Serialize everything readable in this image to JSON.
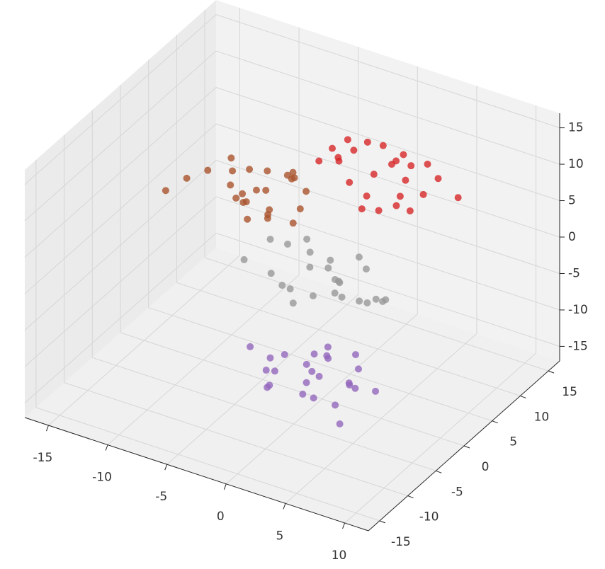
{
  "chart_data": {
    "type": "scatter3d",
    "xlim": [
      -17,
      12
    ],
    "ylim": [
      -17,
      17
    ],
    "zlim": [
      -17,
      17
    ],
    "xticks": [
      -15,
      -10,
      -5,
      0,
      5,
      10
    ],
    "yticks": [
      -15,
      -10,
      -5,
      0,
      5,
      10,
      15
    ],
    "zticks": [
      -15,
      -10,
      -5,
      0,
      5,
      10,
      15
    ],
    "grid": true,
    "series": [
      {
        "color": "#d62728",
        "x": [
          0.5,
          -2.1,
          3.2,
          1.8,
          -1.0,
          4.5,
          -3.3,
          2.0,
          0.2,
          -0.7,
          5.1,
          1.1,
          -2.8,
          3.6,
          -1.5,
          2.7,
          0.9,
          -3.9,
          1.6,
          4.0,
          -0.3,
          2.4,
          -1.9,
          6.8,
          0.0
        ],
        "y": [
          8.2,
          10.1,
          6.5,
          9.4,
          7.0,
          11.2,
          8.8,
          5.9,
          12.0,
          9.6,
          7.3,
          4.8,
          10.5,
          8.1,
          6.2,
          13.1,
          9.0,
          7.7,
          11.5,
          5.5,
          8.6,
          10.8,
          6.9,
          9.9,
          14.5
        ],
        "z": [
          8.5,
          9.1,
          6.8,
          10.2,
          7.4,
          8.0,
          9.6,
          5.9,
          7.1,
          11.3,
          8.8,
          6.4,
          9.9,
          5.2,
          10.6,
          7.7,
          12.1,
          8.3,
          6.0,
          9.2,
          4.8,
          8.9,
          10.4,
          7.5,
          6.6
        ]
      },
      {
        "color": "#a9542d",
        "x": [
          -6.2,
          -8.1,
          -4.5,
          -7.3,
          -5.0,
          -9.4,
          -3.8,
          -6.9,
          -5.6,
          -10.2,
          -4.1,
          -7.8,
          -6.4,
          -3.2,
          -8.6,
          -5.3,
          -7.0,
          -11.5,
          -4.8,
          -6.0,
          -9.0,
          -5.9,
          -2.9,
          -7.5,
          -12.8
        ],
        "y": [
          3.1,
          1.8,
          4.6,
          2.5,
          0.9,
          3.9,
          5.2,
          0.4,
          2.2,
          1.2,
          3.5,
          4.8,
          -0.5,
          2.9,
          2.0,
          5.8,
          1.5,
          0.2,
          4.0,
          3.3,
          2.7,
          -1.0,
          1.0,
          6.1,
          -0.8
        ],
        "z": [
          6.2,
          5.0,
          7.8,
          8.9,
          4.5,
          6.6,
          5.9,
          7.2,
          3.8,
          8.1,
          9.5,
          4.2,
          6.9,
          5.4,
          10.1,
          6.4,
          2.9,
          7.0,
          8.4,
          3.5,
          5.7,
          7.6,
          4.9,
          6.1,
          5.3
        ]
      },
      {
        "color": "#999999",
        "x": [
          0.3,
          -2.5,
          2.1,
          -1.2,
          3.4,
          -3.6,
          1.0,
          -0.5,
          4.2,
          -4.4,
          1.8,
          -1.9,
          2.9,
          0.6,
          -3.0,
          3.8,
          -0.9,
          1.4,
          -2.2,
          5.0,
          0.0,
          -1.6,
          2.4,
          -4.9,
          3.1
        ],
        "y": [
          0.5,
          -1.8,
          2.2,
          -3.1,
          0.9,
          1.5,
          -0.6,
          3.4,
          -2.2,
          0.1,
          4.1,
          -1.1,
          -3.8,
          1.9,
          -2.7,
          2.8,
          -0.2,
          -4.5,
          2.5,
          -0.9,
          3.0,
          0.7,
          -1.5,
          -3.5,
          4.8
        ],
        "z": [
          0.8,
          -1.5,
          2.1,
          -0.4,
          -2.6,
          1.3,
          3.0,
          -3.2,
          0.2,
          2.5,
          -1.0,
          -4.1,
          1.7,
          -2.0,
          0.5,
          -3.5,
          2.8,
          1.0,
          -1.8,
          0.0,
          -2.9,
          3.6,
          -0.7,
          1.9,
          -5.0
        ]
      },
      {
        "color": "#9467bd",
        "x": [
          1.2,
          -1.5,
          3.0,
          0.4,
          -2.8,
          4.1,
          -0.6,
          2.2,
          1.7,
          -3.5,
          5.0,
          0.0,
          -1.1,
          2.9,
          3.8,
          -2.0,
          1.0,
          -4.2,
          4.6,
          0.8,
          -0.2,
          2.5,
          -3.0,
          1.5,
          6.0
        ],
        "y": [
          -3.0,
          -5.2,
          -1.4,
          -2.2,
          -4.0,
          -3.8,
          -0.5,
          -6.1,
          -2.7,
          -1.8,
          -4.6,
          -3.4,
          -7.0,
          0.4,
          -2.0,
          -5.5,
          -1.0,
          -3.9,
          -6.5,
          -4.4,
          1.5,
          -2.9,
          -0.3,
          -5.9,
          -3.1
        ],
        "z": [
          -11.2,
          -10.4,
          -12.5,
          -9.1,
          -11.8,
          -10.0,
          -13.2,
          -11.5,
          -8.3,
          -12.0,
          -9.7,
          -14.0,
          -10.9,
          -11.6,
          -7.5,
          -12.7,
          -10.2,
          -9.4,
          -13.5,
          -8.8,
          -11.0,
          -14.5,
          -12.3,
          -9.9,
          -10.6
        ]
      }
    ]
  }
}
